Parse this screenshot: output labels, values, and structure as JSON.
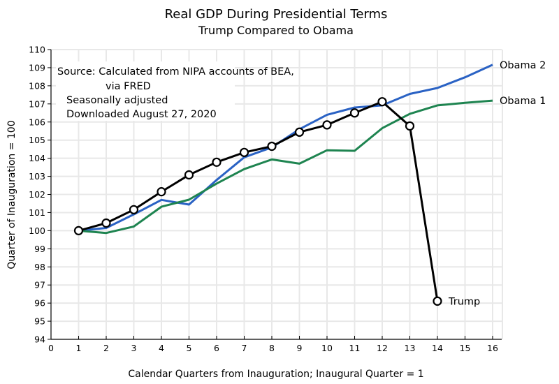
{
  "chart_data": {
    "type": "line",
    "title": "Real GDP During Presidential Terms",
    "subtitle": "Trump Compared to Obama",
    "xlabel": "Calendar Quarters from Inauguration; Inaugural Quarter = 1",
    "ylabel": "Quarter of Inauguration = 100",
    "xlim": [
      0,
      16
    ],
    "ylim": [
      94,
      110
    ],
    "xticks": [
      0,
      1,
      2,
      3,
      4,
      5,
      6,
      7,
      8,
      9,
      10,
      11,
      12,
      13,
      14,
      15,
      16
    ],
    "yticks": [
      94,
      95,
      96,
      97,
      98,
      99,
      100,
      101,
      102,
      103,
      104,
      105,
      106,
      107,
      108,
      109,
      110
    ],
    "grid": true,
    "annotations": [
      "Source:  Calculated from NIPA accounts of BEA,",
      "via FRED",
      "Seasonally adjusted",
      "Downloaded August 27, 2020"
    ],
    "series": [
      {
        "name": "Obama 2",
        "color": "#2a62c4",
        "markers": false,
        "x": [
          1,
          2,
          3,
          4,
          5,
          6,
          7,
          8,
          9,
          10,
          11,
          12,
          13,
          14,
          15,
          16
        ],
        "values": [
          100,
          100.15,
          100.9,
          101.7,
          101.44,
          102.8,
          104.05,
          104.6,
          105.6,
          106.4,
          106.8,
          106.92,
          107.55,
          107.88,
          108.47,
          109.16
        ]
      },
      {
        "name": "Obama 1",
        "color": "#1e8450",
        "markers": false,
        "x": [
          1,
          2,
          3,
          4,
          5,
          6,
          7,
          8,
          9,
          10,
          11,
          12,
          13,
          14,
          15,
          16
        ],
        "values": [
          100,
          99.87,
          100.23,
          101.32,
          101.71,
          102.6,
          103.4,
          103.93,
          103.7,
          104.44,
          104.41,
          105.66,
          106.45,
          106.92,
          107.06,
          107.18
        ]
      },
      {
        "name": "Trump",
        "color": "#000000",
        "markers": true,
        "x": [
          1,
          2,
          3,
          4,
          5,
          6,
          7,
          8,
          9,
          10,
          11,
          12,
          13,
          14
        ],
        "values": [
          100,
          100.42,
          101.16,
          102.15,
          103.08,
          103.78,
          104.32,
          104.66,
          105.44,
          105.84,
          106.5,
          107.12,
          105.78,
          96.11
        ]
      }
    ]
  }
}
